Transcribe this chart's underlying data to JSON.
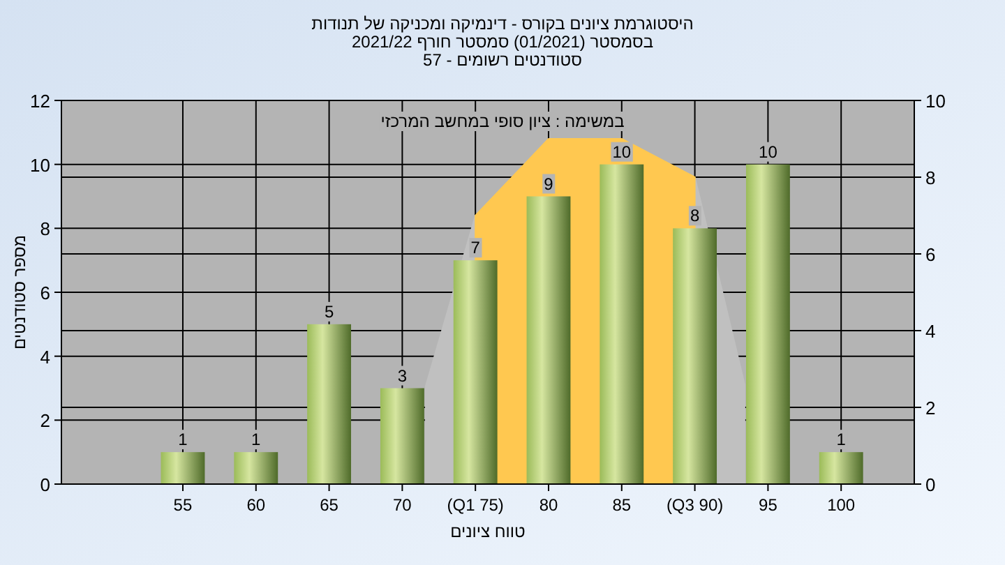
{
  "chart_data": {
    "type": "bar",
    "title": "היסטוגרמת ציונים בקורס - דינמיקה ומכניקה של תנודות",
    "subtitle": "בסמסטר  (01/2021)  סמסטר חורף 2021/22",
    "annotations": [
      "סטודנטים רשומים - 57",
      "במשימה : ציון סופי במחשב המרכזי"
    ],
    "xlabel": "טווח ציונים",
    "ylabel": "מספר סטודנטים",
    "x": [
      55,
      60,
      65,
      70,
      75,
      80,
      85,
      90,
      95,
      100
    ],
    "series": [
      {
        "type": "area",
        "axis": "y2",
        "color": "#c0c0c0",
        "x": [
          71.6,
          75,
          90,
          93.4
        ],
        "values": [
          2.55,
          7.0,
          8.0,
          2.6
        ]
      },
      {
        "type": "area",
        "axis": "y2",
        "color": "#ffc850",
        "x": [
          75,
          80,
          85,
          90
        ],
        "values": [
          7.0,
          9.0,
          9.0,
          8.0
        ]
      },
      {
        "color": "#9bbb59",
        "values": [
          1,
          1,
          5,
          3,
          7,
          9,
          10,
          8,
          10,
          1
        ],
        "value_labels": [
          "1",
          "1",
          "5",
          "3",
          "7",
          "9",
          "10",
          "8",
          "10",
          "1"
        ]
      }
    ],
    "grid": true,
    "xlim": [
      46.7,
      105
    ],
    "xticks": [
      55,
      60,
      65,
      70,
      {
        "value": 75,
        "label": "(Q1 75)"
      },
      80,
      85,
      {
        "value": 90,
        "label": "(Q3 90)"
      },
      95,
      100
    ],
    "ylim": [
      0,
      12
    ],
    "yticks": [
      0,
      2,
      4,
      6,
      8,
      10,
      12
    ],
    "y2lim": [
      0,
      10
    ],
    "y2ticks": [
      0,
      2,
      4,
      6,
      8,
      10
    ]
  }
}
